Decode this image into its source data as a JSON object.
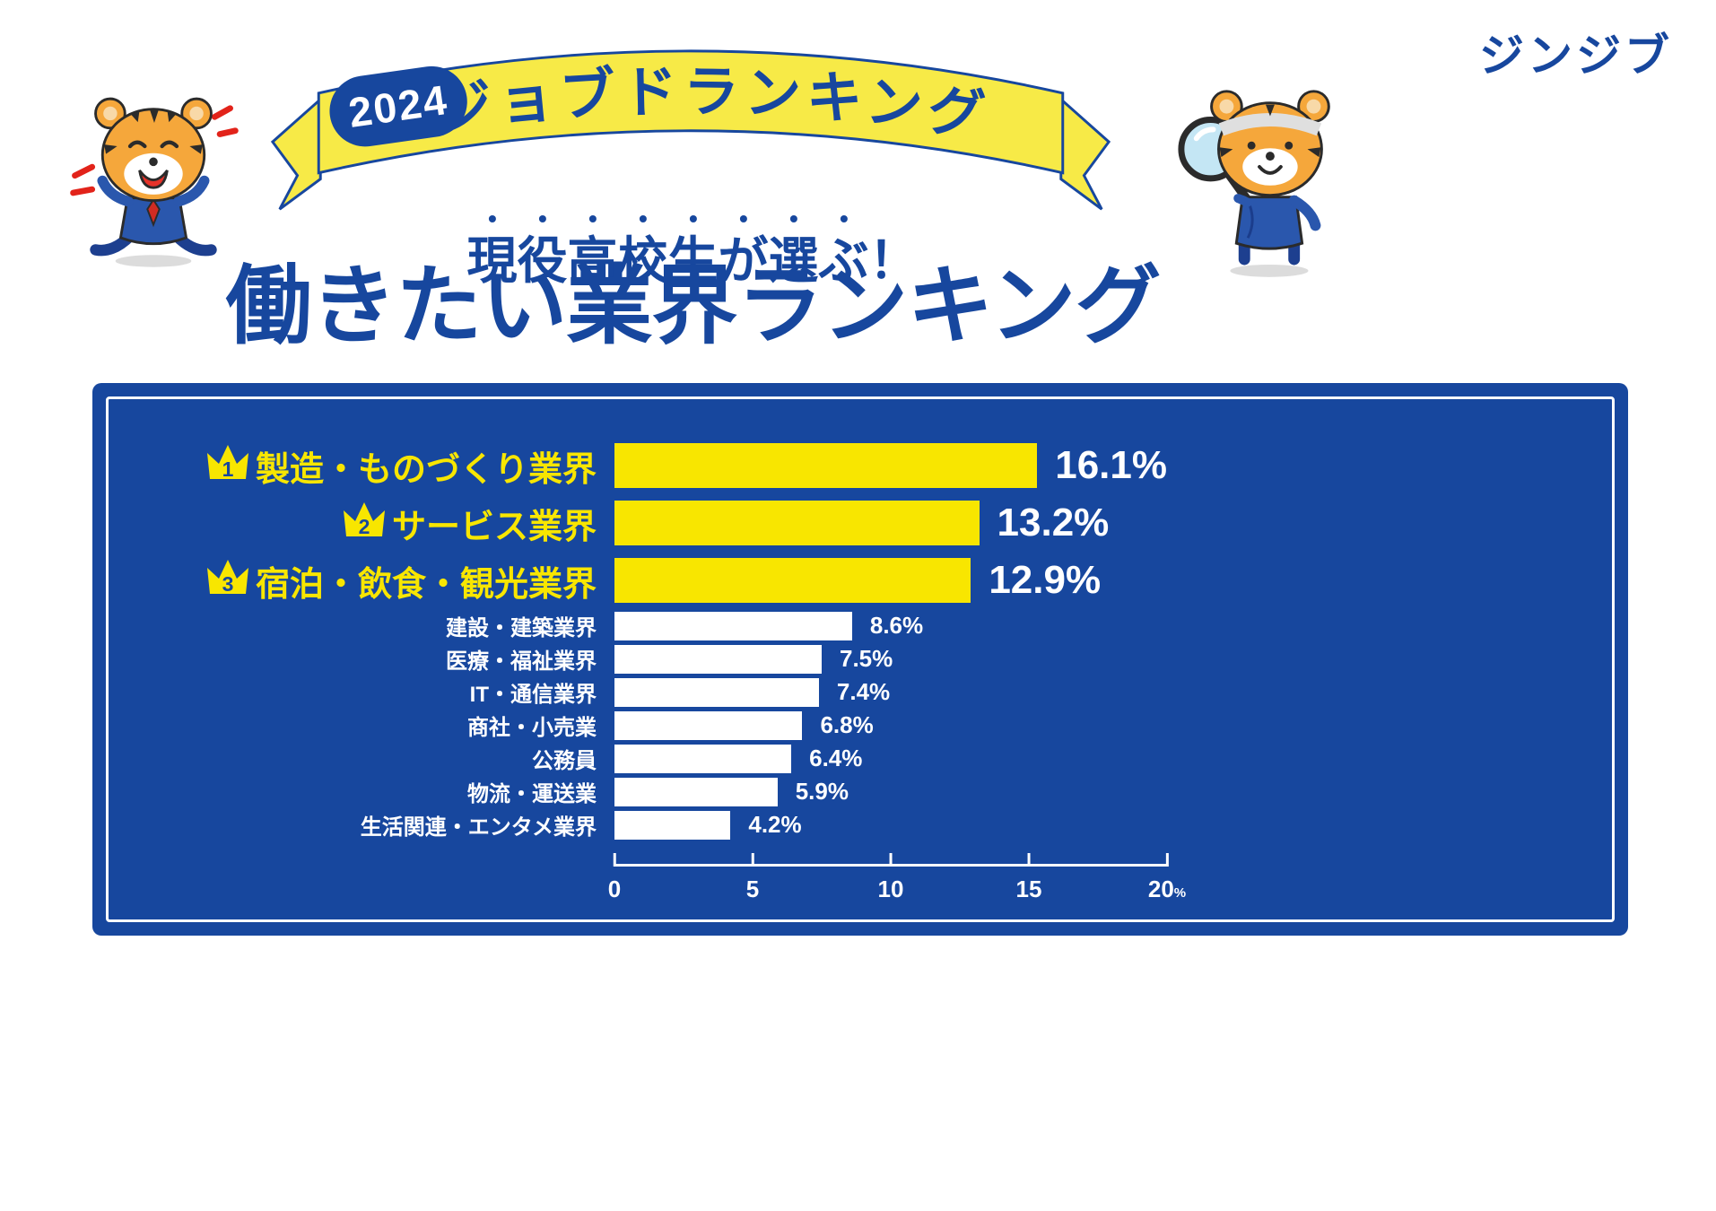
{
  "brand": {
    "logo": "ジンジブ"
  },
  "header": {
    "year_badge": "2024",
    "banner_title": "ジョブドランキング",
    "subtitle_emphasized": "現役高校生が選ぶ",
    "subtitle_tail": "！",
    "title": "働きたい業界ランキング"
  },
  "colors": {
    "blue": "#17479e",
    "yellow": "#f8e600",
    "ribbon-yellow": "#f7ea47",
    "white": "#ffffff"
  },
  "mascots": {
    "left": "tiger-jumping",
    "right": "tiger-with-magnifier"
  },
  "chart_data": {
    "type": "bar",
    "orientation": "horizontal",
    "title": "働きたい業界ランキング",
    "categories": [
      "製造・ものづくり業界",
      "サービス業界",
      "宿泊・飲食・観光業界",
      "建設・建築業界",
      "医療・福祉業界",
      "IT・通信業界",
      "商社・小売業",
      "公務員",
      "物流・運送業",
      "生活関連・エンタメ業界"
    ],
    "values": [
      16.1,
      13.2,
      12.9,
      8.6,
      7.5,
      7.4,
      6.8,
      6.4,
      5.9,
      4.2
    ],
    "value_labels": [
      "16.1%",
      "13.2%",
      "12.9%",
      "8.6%",
      "7.5%",
      "7.4%",
      "6.8%",
      "6.4%",
      "5.9%",
      "4.2%"
    ],
    "ranks": [
      "1",
      "2",
      "3"
    ],
    "highlight_count": 3,
    "xlim": [
      0,
      20
    ],
    "x_ticks": [
      0,
      5,
      10,
      15,
      20
    ],
    "x_unit": "%",
    "grid": false,
    "legend": false,
    "background": "#17479e",
    "bar_color_top3": "#f8e600",
    "bar_color_rest": "#ffffff"
  }
}
